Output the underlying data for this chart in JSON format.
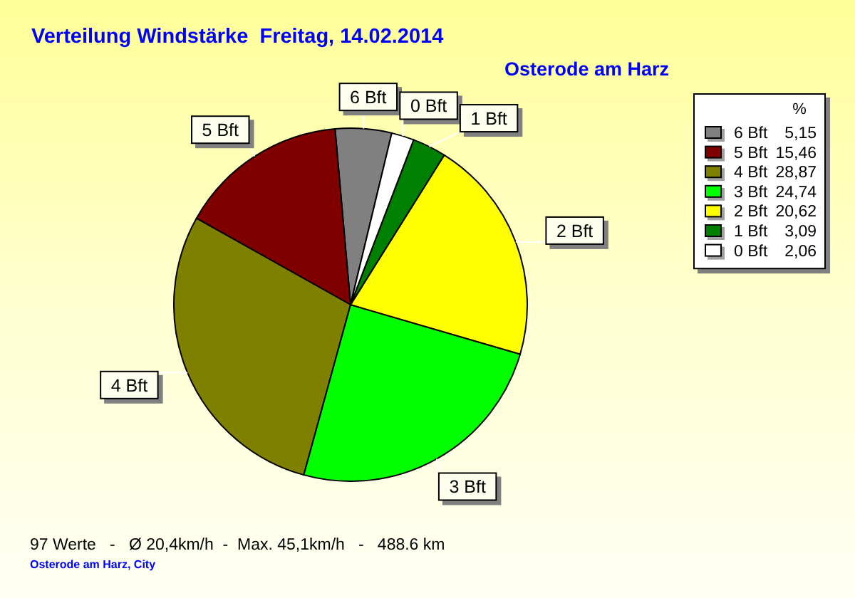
{
  "chart_data": {
    "type": "pie",
    "title": "Verteilung Windstärke  Freitag, 14.02.2014",
    "subtitle": "Osterode am Harz",
    "categories": [
      "6 Bft",
      "5 Bft",
      "4 Bft",
      "3 Bft",
      "2 Bft",
      "1 Bft",
      "0 Bft"
    ],
    "values": [
      5.15,
      15.46,
      28.87,
      24.74,
      20.62,
      3.09,
      2.06
    ],
    "colors": [
      "#808080",
      "#800000",
      "#808000",
      "#00ff00",
      "#ffff00",
      "#008000",
      "#ffffff"
    ],
    "value_labels": [
      "5,15",
      "15,46",
      "28,87",
      "24,74",
      "20,62",
      "3,09",
      "2,06"
    ],
    "legend_title": "%",
    "legend": "top right",
    "annotations": [
      "97 Werte   -   Ø 20,4km/h  -  Max. 45,1km/h   -   488.6 km",
      "Osterode am Harz, City"
    ]
  }
}
